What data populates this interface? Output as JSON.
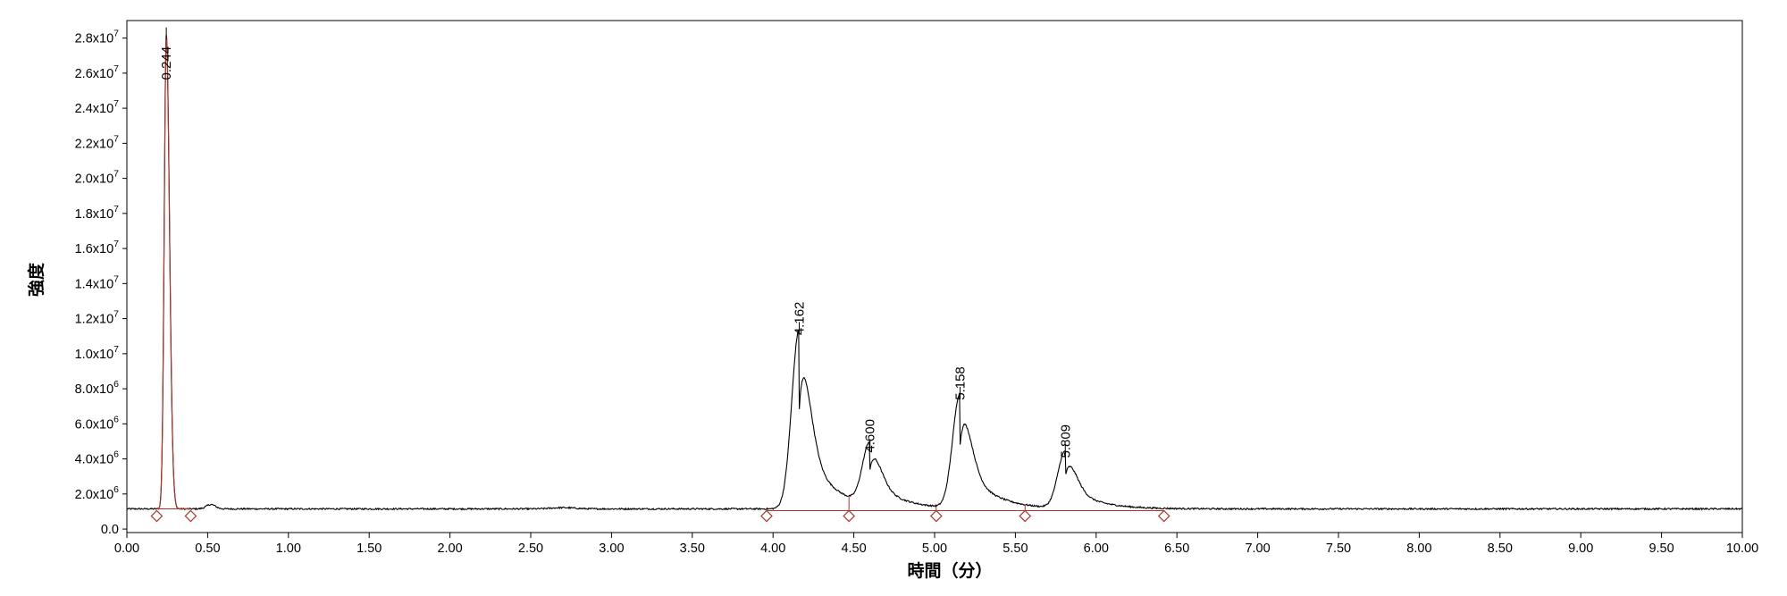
{
  "chart_data": {
    "type": "line",
    "title": "",
    "xlabel": "時間（分）",
    "ylabel": "強度",
    "xlim": [
      0,
      10
    ],
    "ylim": [
      -0.2,
      29.0
    ],
    "y_unit_scale": "1e6",
    "grid": false,
    "x_ticks": [
      "0.00",
      "0.50",
      "1.00",
      "1.50",
      "2.00",
      "2.50",
      "3.00",
      "3.50",
      "4.00",
      "4.50",
      "5.00",
      "5.50",
      "6.00",
      "6.50",
      "7.00",
      "7.50",
      "8.00",
      "8.50",
      "9.00",
      "9.50",
      "10.00"
    ],
    "y_ticks": [
      {
        "value": 0,
        "label": "0.0"
      },
      {
        "value": 2,
        "mant": "2.0x10",
        "exp": "6"
      },
      {
        "value": 4,
        "mant": "4.0x10",
        "exp": "6"
      },
      {
        "value": 6,
        "mant": "6.0x10",
        "exp": "6"
      },
      {
        "value": 8,
        "mant": "8.0x10",
        "exp": "6"
      },
      {
        "value": 10,
        "mant": "1.0x10",
        "exp": "7"
      },
      {
        "value": 12,
        "mant": "1.2x10",
        "exp": "7"
      },
      {
        "value": 14,
        "mant": "1.4x10",
        "exp": "7"
      },
      {
        "value": 16,
        "mant": "1.6x10",
        "exp": "7"
      },
      {
        "value": 18,
        "mant": "1.8x10",
        "exp": "7"
      },
      {
        "value": 20,
        "mant": "2.0x10",
        "exp": "7"
      },
      {
        "value": 22,
        "mant": "2.2x10",
        "exp": "7"
      },
      {
        "value": 24,
        "mant": "2.4x10",
        "exp": "7"
      },
      {
        "value": 26,
        "mant": "2.6x10",
        "exp": "7"
      },
      {
        "value": 28,
        "mant": "2.8x10",
        "exp": "7"
      }
    ],
    "baseline": 1.15,
    "peaks": [
      {
        "label": "0.244",
        "rt": 0.244,
        "height": 28.2,
        "left": 0.185,
        "right": 0.395,
        "colour": "#b0302a"
      },
      {
        "label": "4.162",
        "rt": 4.162,
        "height": 11.4,
        "left": 3.96,
        "right": 4.47,
        "colour": "#000000"
      },
      {
        "label": "4.600",
        "rt": 4.6,
        "height": 4.7,
        "left": 4.47,
        "right": 5.01,
        "colour": "#000000"
      },
      {
        "label": "5.158",
        "rt": 5.158,
        "height": 7.7,
        "left": 5.01,
        "right": 5.56,
        "colour": "#000000"
      },
      {
        "label": "5.809",
        "rt": 5.809,
        "height": 4.4,
        "left": 5.56,
        "right": 6.42,
        "colour": "#000000"
      }
    ],
    "integration_markers": [
      0.185,
      0.395,
      3.96,
      4.47,
      5.01,
      5.56,
      6.42
    ],
    "colors": {
      "trace": "#000000",
      "integration": "#b0302a"
    }
  }
}
